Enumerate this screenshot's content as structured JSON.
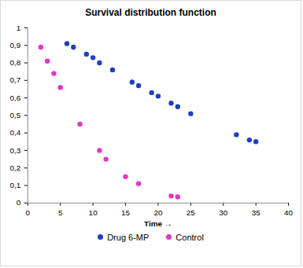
{
  "chart_data": {
    "type": "scatter",
    "title": "Survival distribution function",
    "x_label": "Time",
    "xlim": [
      0,
      40
    ],
    "xticks": [
      0,
      5,
      10,
      15,
      20,
      25,
      30,
      35,
      40
    ],
    "ylim": [
      0,
      1
    ],
    "yticks": [
      0,
      {
        "value": 0.1,
        "label": "0,1"
      },
      {
        "value": 0.2,
        "label": "0,2"
      },
      {
        "value": 0.3,
        "label": "0,3"
      },
      {
        "value": 0.4,
        "label": "0,4"
      },
      {
        "value": 0.5,
        "label": "0,5"
      },
      {
        "value": 0.6,
        "label": "0,6"
      },
      {
        "value": 0.7,
        "label": "0,7"
      },
      {
        "value": 0.8,
        "label": "0,8"
      },
      {
        "value": 0.9,
        "label": "0,9"
      },
      1
    ],
    "grid": false,
    "legend": "bottom",
    "series": [
      {
        "name": "Drug 6-MP",
        "color": "#1f3fbf",
        "marker": "circle",
        "x": [
          6,
          7,
          9,
          10,
          11,
          13,
          16,
          17,
          19,
          20,
          22,
          23,
          25,
          32,
          34,
          35
        ],
        "values": [
          0.91,
          0.89,
          0.85,
          0.83,
          0.8,
          0.76,
          0.69,
          0.67,
          0.63,
          0.61,
          0.57,
          0.55,
          0.51,
          0.39,
          0.36,
          0.35
        ]
      },
      {
        "name": "Control",
        "color": "#e535c8",
        "marker": "circle",
        "x": [
          2,
          3,
          4,
          5,
          8,
          11,
          12,
          15,
          17,
          22,
          23
        ],
        "values": [
          0.89,
          0.81,
          0.74,
          0.66,
          0.45,
          0.3,
          0.25,
          0.15,
          0.11,
          0.04,
          0.035
        ]
      }
    ]
  }
}
